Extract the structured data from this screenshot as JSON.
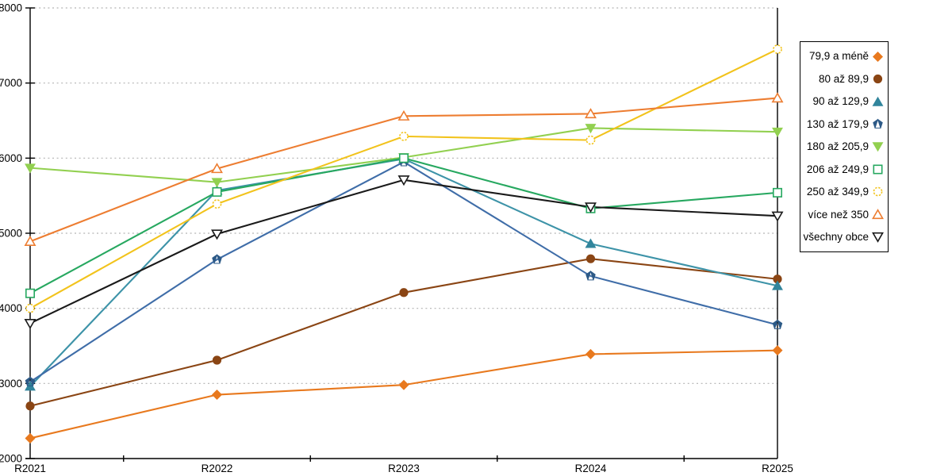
{
  "chart_data": {
    "type": "line",
    "title": "",
    "xlabel": "",
    "ylabel": "",
    "categories": [
      "R2021",
      "R2022",
      "R2023",
      "R2024",
      "R2025"
    ],
    "y_ticks": [
      2000,
      3000,
      4000,
      5000,
      6000,
      7000,
      8000
    ],
    "ylim": [
      2000,
      8000
    ],
    "grid": "horizontal-dotted",
    "grid_color": "#b3b3b3",
    "axis_color": "#000000",
    "legend_position": "right-outside",
    "series": [
      {
        "name": "79,9 a méně",
        "marker": "diamond",
        "style": "filled",
        "color": "#e8791e",
        "values": [
          2270,
          2850,
          2980,
          3390,
          3440
        ]
      },
      {
        "name": "80 až 89,9",
        "marker": "circle",
        "style": "filled",
        "color": "#8a4514",
        "values": [
          2700,
          3310,
          4210,
          4660,
          4390
        ]
      },
      {
        "name": "90 až 129,9",
        "marker": "triangle-up",
        "style": "filled",
        "color": "#31859c",
        "line_color": "#3d93a8",
        "values": [
          2960,
          5570,
          5990,
          4860,
          4300
        ]
      },
      {
        "name": "130 až 179,9",
        "marker": "pentagon",
        "style": "filled",
        "color": "#2d5a87",
        "line_color": "#3f6da8",
        "values": [
          3020,
          4650,
          5950,
          4430,
          3780
        ]
      },
      {
        "name": "180 až 205,9",
        "marker": "triangle-down",
        "style": "filled",
        "color": "#92d050",
        "values": [
          5870,
          5680,
          6010,
          6400,
          6350
        ]
      },
      {
        "name": "206 až 249,9",
        "marker": "square",
        "style": "open",
        "color": "#27a860",
        "values": [
          4200,
          5550,
          6000,
          5330,
          5540
        ]
      },
      {
        "name": "250 až 349,9",
        "marker": "circle",
        "style": "open",
        "color": "#f2c31c",
        "marker_dash": true,
        "values": [
          4000,
          5390,
          6290,
          6240,
          7450
        ]
      },
      {
        "name": "více než 350",
        "marker": "triangle-up",
        "style": "open",
        "color": "#ed7d31",
        "values": [
          4890,
          5860,
          6560,
          6590,
          6800
        ]
      },
      {
        "name": "všechny obce",
        "marker": "triangle-down",
        "style": "open",
        "color": "#1a1a1a",
        "values": [
          3800,
          4990,
          5710,
          5350,
          5230
        ]
      }
    ]
  }
}
